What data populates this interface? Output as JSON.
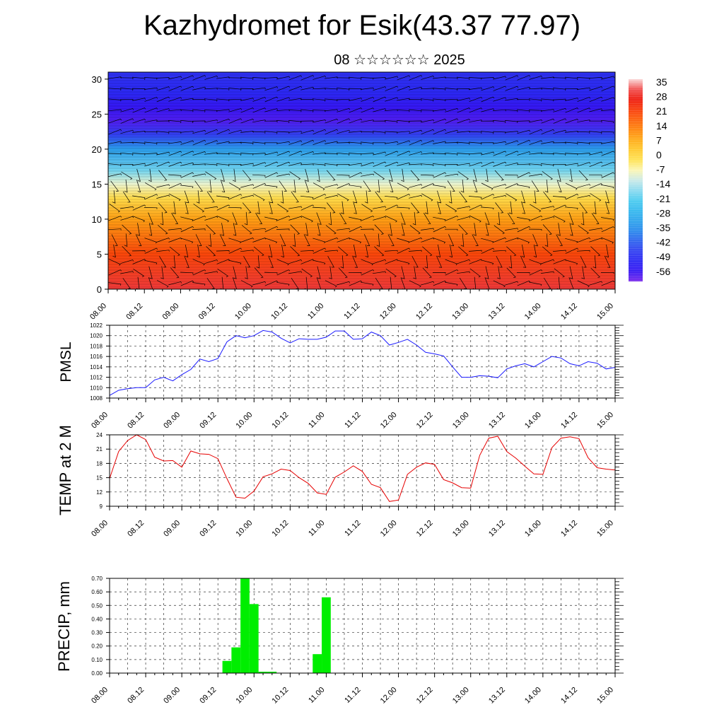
{
  "header": {
    "title": "Kazhydromet for Esik(43.37 77.97)",
    "subtitle": "08 ☆☆☆☆☆☆ 2025"
  },
  "colors": {
    "pmsl_line": "#1a1aff",
    "temp_line": "#e60000",
    "precip_bar": "#00ee00",
    "grid": "#333333"
  },
  "time_labels": [
    "08.00",
    "08.12",
    "09.00",
    "09.12",
    "10.00",
    "10.12",
    "11.00",
    "11.12",
    "12.00",
    "12.12",
    "13.00",
    "13.12",
    "14.00",
    "14.12",
    "15.00"
  ],
  "chart_data": [
    {
      "type": "heatmap",
      "name": "temperature-wind cross section",
      "ylim": [
        0,
        31
      ],
      "yticks": [
        0,
        5,
        10,
        15,
        20,
        25,
        30
      ],
      "colorbar_labels": [
        "35",
        "28",
        "21",
        "14",
        "7",
        "0",
        "-7",
        "-14",
        "-21",
        "-28",
        "-35",
        "-42",
        "-49",
        "-56"
      ],
      "colorbar_range": [
        -60,
        38
      ],
      "layers": [
        {
          "level": 0,
          "value": 32
        },
        {
          "level": 5,
          "value": 22
        },
        {
          "level": 10,
          "value": 10
        },
        {
          "level": 13,
          "value": 0
        },
        {
          "level": 15,
          "value": -8
        },
        {
          "level": 17,
          "value": -18
        },
        {
          "level": 20,
          "value": -32
        },
        {
          "level": 22,
          "value": -45
        },
        {
          "level": 24,
          "value": -57
        },
        {
          "level": 26,
          "value": -55
        },
        {
          "level": 28,
          "value": -50
        },
        {
          "level": 31,
          "value": -48
        }
      ]
    },
    {
      "type": "line",
      "ylabel": "PMSL",
      "ylim": [
        1008,
        1022
      ],
      "yticks": [
        "1008",
        "1010",
        "1012",
        "1014",
        "1016",
        "1018",
        "1020",
        "1022"
      ],
      "series": [
        {
          "x": [
            0,
            3,
            6,
            9,
            12,
            15,
            18,
            21,
            24,
            27,
            30,
            33,
            36,
            39,
            42,
            45,
            48,
            51,
            54,
            57,
            60,
            63,
            66,
            69,
            72,
            75,
            78,
            81,
            84,
            87,
            90,
            93,
            96,
            99,
            102,
            105,
            108,
            111,
            114,
            117,
            120,
            123,
            126,
            129,
            132,
            135,
            138,
            141,
            144,
            147,
            150,
            153,
            156,
            159,
            162,
            165,
            168
          ],
          "values": [
            1008.5,
            1009.5,
            1009.8,
            1010.0,
            1010.0,
            1011.5,
            1012.0,
            1011.3,
            1012.5,
            1013.5,
            1015.5,
            1015.0,
            1015.6,
            1018.8,
            1020.0,
            1019.6,
            1020.0,
            1021.0,
            1020.7,
            1019.5,
            1018.6,
            1019.4,
            1019.3,
            1019.3,
            1019.7,
            1020.9,
            1020.9,
            1019.3,
            1019.4,
            1020.7,
            1020.0,
            1018.2,
            1018.7,
            1019.3,
            1018.2,
            1016.8,
            1016.5,
            1016.1,
            1014.0,
            1012.0,
            1012.0,
            1012.3,
            1012.2,
            1011.9,
            1013.6,
            1014.2,
            1014.6,
            1014.0,
            1015.0,
            1016.0,
            1015.7,
            1014.6,
            1014.2,
            1015.0,
            1014.7,
            1013.6,
            1013.9
          ]
        }
      ]
    },
    {
      "type": "line",
      "ylabel": "TEMP at 2 M",
      "ylim": [
        9,
        24
      ],
      "yticks": [
        "9",
        "12",
        "15",
        "18",
        "21",
        "24"
      ],
      "series": [
        {
          "x": [
            0,
            3,
            6,
            9,
            12,
            15,
            18,
            21,
            24,
            27,
            30,
            33,
            36,
            39,
            42,
            45,
            48,
            51,
            54,
            57,
            60,
            63,
            66,
            69,
            72,
            75,
            78,
            81,
            84,
            87,
            90,
            93,
            96,
            99,
            102,
            105,
            108,
            111,
            114,
            117,
            120,
            123,
            126,
            129,
            132,
            135,
            138,
            141,
            144,
            147,
            150,
            153,
            156,
            159,
            162,
            165,
            168
          ],
          "values": [
            14.8,
            20.5,
            22.8,
            24.0,
            23.0,
            19.3,
            18.5,
            18.6,
            17.2,
            20.6,
            20.0,
            19.9,
            19.0,
            14.8,
            10.9,
            10.7,
            12.2,
            15.2,
            15.8,
            16.8,
            16.5,
            15.0,
            13.8,
            11.8,
            11.5,
            15.1,
            16.2,
            17.5,
            16.3,
            13.6,
            12.9,
            10.0,
            10.3,
            15.7,
            17.2,
            18.1,
            17.8,
            14.6,
            13.9,
            12.9,
            12.8,
            19.7,
            23.3,
            23.7,
            20.5,
            19.1,
            17.4,
            15.8,
            15.7,
            21.3,
            23.3,
            23.6,
            23.2,
            19.2,
            17.1,
            16.8,
            16.6
          ]
        }
      ]
    },
    {
      "type": "bar",
      "ylabel": "PRECIP, mm",
      "ylim": [
        0,
        0.7
      ],
      "yticks": [
        "0.00",
        "0.10",
        "0.20",
        "0.30",
        "0.40",
        "0.50",
        "0.60",
        "0.70"
      ],
      "bars": [
        {
          "x": 39,
          "value": 0.09
        },
        {
          "x": 42,
          "value": 0.19
        },
        {
          "x": 45,
          "value": 0.7
        },
        {
          "x": 48,
          "value": 0.51
        },
        {
          "x": 51,
          "value": 0.01
        },
        {
          "x": 54,
          "value": 0.01
        },
        {
          "x": 69,
          "value": 0.14
        },
        {
          "x": 72,
          "value": 0.56
        }
      ]
    }
  ]
}
